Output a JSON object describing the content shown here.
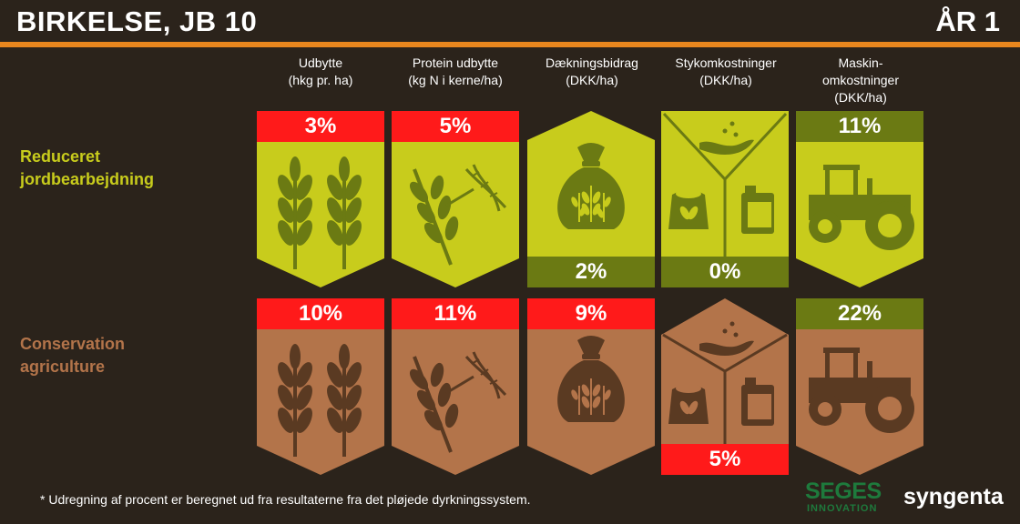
{
  "header": {
    "title": "BIRKELSE, JB 10",
    "year": "ÅR 1"
  },
  "columns": [
    {
      "label": "Udbytte\n(hkg pr. ha)"
    },
    {
      "label": "Protein udbytte\n(kg N i kerne/ha)"
    },
    {
      "label": "Dækningsbidrag\n(DKK/ha)"
    },
    {
      "label": "Stykomkostninger\n(DKK/ha)"
    },
    {
      "label": "Maskin-\nomkostninger\n(DKK/ha)"
    }
  ],
  "rows": [
    {
      "label": "Reduceret\njordbearbejdning",
      "color": "#c8cc1c",
      "values": [
        "3%",
        "5%",
        "2%",
        "0%",
        "11%"
      ]
    },
    {
      "label": "Conservation\nagriculture",
      "color": "#b3744a",
      "values": [
        "10%",
        "11%",
        "9%",
        "5%",
        "22%"
      ]
    }
  ],
  "colors": {
    "red": "#ff1a1a",
    "dark_green": "#6b7a13",
    "orange": "#e8861e",
    "background": "#2b231b"
  },
  "footnote": "* Udregning af procent er beregnet ud fra resultaterne  fra det pløjede dyrkningssystem.",
  "logos": {
    "seges_top": "SEGES",
    "seges_bottom": "INNOVATION",
    "syngenta": "syngenta"
  }
}
